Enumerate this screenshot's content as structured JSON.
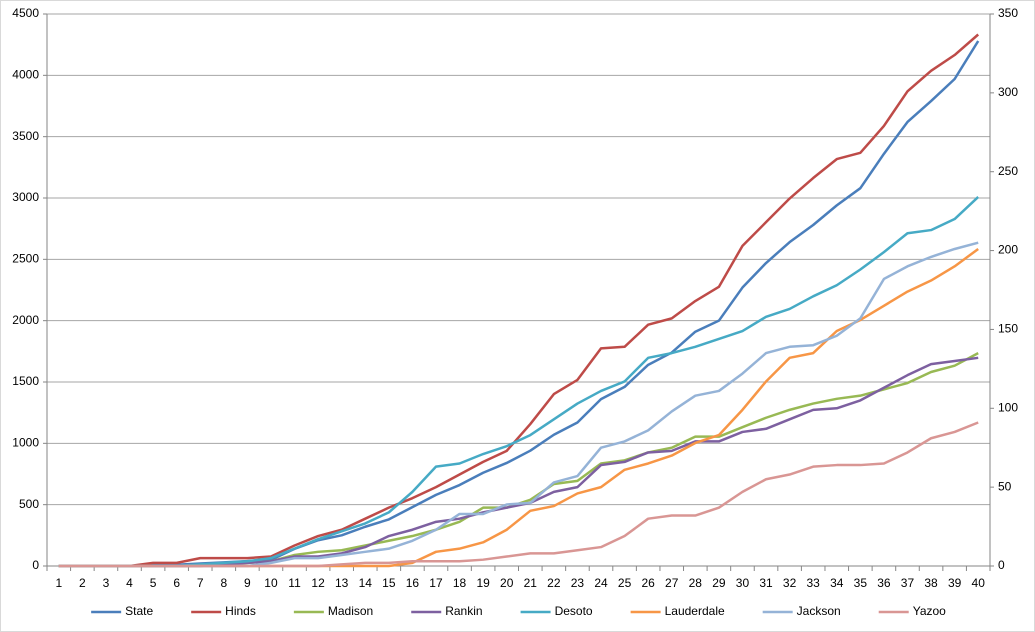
{
  "chart_data": {
    "type": "line",
    "categories": [
      1,
      2,
      3,
      4,
      5,
      6,
      7,
      8,
      9,
      10,
      11,
      12,
      13,
      14,
      15,
      16,
      17,
      18,
      19,
      20,
      21,
      22,
      23,
      24,
      25,
      26,
      27,
      28,
      29,
      30,
      31,
      32,
      33,
      34,
      35,
      36,
      37,
      38,
      39,
      40
    ],
    "ylim": [
      0,
      4500
    ],
    "yticks": [
      0,
      500,
      1000,
      1500,
      2000,
      2500,
      3000,
      3500,
      4000,
      4500
    ],
    "y2lim": [
      0,
      350
    ],
    "y2ticks": [
      0,
      50,
      100,
      150,
      200,
      250,
      300,
      350
    ],
    "grid": true,
    "legend": "bottom",
    "series": [
      {
        "name": "State",
        "color": "#4a7ebb",
        "values": [
          0,
          0,
          0,
          0,
          10,
          10,
          20,
          30,
          40,
          50,
          140,
          210,
          250,
          320,
          380,
          480,
          580,
          660,
          760,
          840,
          940,
          1070,
          1170,
          1360,
          1460,
          1640,
          1740,
          1910,
          2000,
          2270,
          2470,
          2640,
          2780,
          2940,
          3080,
          3360,
          3620,
          3790,
          3970,
          4280
        ]
      },
      {
        "name": "Hinds",
        "color": "#be4b48",
        "axis": "y2",
        "values": [
          0,
          0,
          0,
          0,
          2,
          2,
          5,
          5,
          5,
          6,
          13,
          19,
          23,
          30,
          37,
          43,
          50,
          58,
          66,
          73,
          90,
          109,
          118,
          138,
          139,
          153,
          157,
          168,
          177,
          203,
          218,
          233,
          246,
          258,
          262,
          279,
          301,
          314,
          324,
          337
        ]
      },
      {
        "name": "Madison",
        "color": "#98b954",
        "axis": "y2",
        "values": [
          0,
          0,
          0,
          0,
          0,
          0,
          0,
          1,
          2,
          3,
          7,
          9,
          10,
          13,
          16,
          19,
          23,
          28,
          37,
          37,
          42,
          52,
          54,
          65,
          67,
          72,
          75,
          82,
          82,
          88,
          94,
          99,
          103,
          106,
          108,
          112,
          116,
          123,
          127,
          135
        ]
      },
      {
        "name": "Rankin",
        "color": "#7d60a0",
        "axis": "y2",
        "values": [
          0,
          0,
          0,
          0,
          0,
          0,
          0,
          1,
          2,
          3,
          6,
          6,
          8,
          12,
          19,
          23,
          28,
          30,
          34,
          37,
          40,
          47,
          50,
          64,
          66,
          72,
          73,
          79,
          79,
          85,
          87,
          93,
          99,
          100,
          105,
          113,
          121,
          128,
          130,
          132
        ]
      },
      {
        "name": "Desoto",
        "color": "#46aac5",
        "axis": "y2",
        "values": [
          0,
          0,
          0,
          0,
          0,
          0,
          1,
          2,
          3,
          5,
          11,
          17,
          22,
          27,
          34,
          47,
          63,
          65,
          71,
          76,
          83,
          93,
          103,
          111,
          117,
          132,
          135,
          139,
          144,
          149,
          158,
          163,
          171,
          178,
          188,
          199,
          211,
          213,
          220,
          234
        ]
      },
      {
        "name": "Lauderdale",
        "color": "#f79646",
        "axis": "y2",
        "values": [
          0,
          0,
          0,
          0,
          0,
          0,
          0,
          0,
          0,
          0,
          0,
          0,
          0,
          0,
          0,
          2,
          9,
          11,
          15,
          23,
          35,
          38,
          46,
          50,
          61,
          65,
          70,
          78,
          83,
          99,
          117,
          132,
          135,
          149,
          156,
          165,
          174,
          181,
          190,
          201
        ]
      },
      {
        "name": "Jackson",
        "color": "#95b3d7",
        "axis": "y2",
        "values": [
          0,
          0,
          0,
          0,
          0,
          0,
          0,
          0,
          0,
          2,
          5,
          5,
          7,
          9,
          11,
          16,
          23,
          33,
          33,
          39,
          40,
          53,
          57,
          75,
          79,
          86,
          98,
          108,
          111,
          122,
          135,
          139,
          140,
          146,
          157,
          182,
          190,
          196,
          201,
          205
        ]
      },
      {
        "name": "Yazoo",
        "color": "#d99694",
        "axis": "y2",
        "values": [
          0,
          0,
          0,
          0,
          0,
          0,
          0,
          0,
          0,
          0,
          0,
          0,
          1,
          2,
          2,
          3,
          3,
          3,
          4,
          6,
          8,
          8,
          10,
          12,
          19,
          30,
          32,
          32,
          37,
          47,
          55,
          58,
          63,
          64,
          64,
          65,
          72,
          81,
          85,
          91
        ]
      }
    ]
  }
}
